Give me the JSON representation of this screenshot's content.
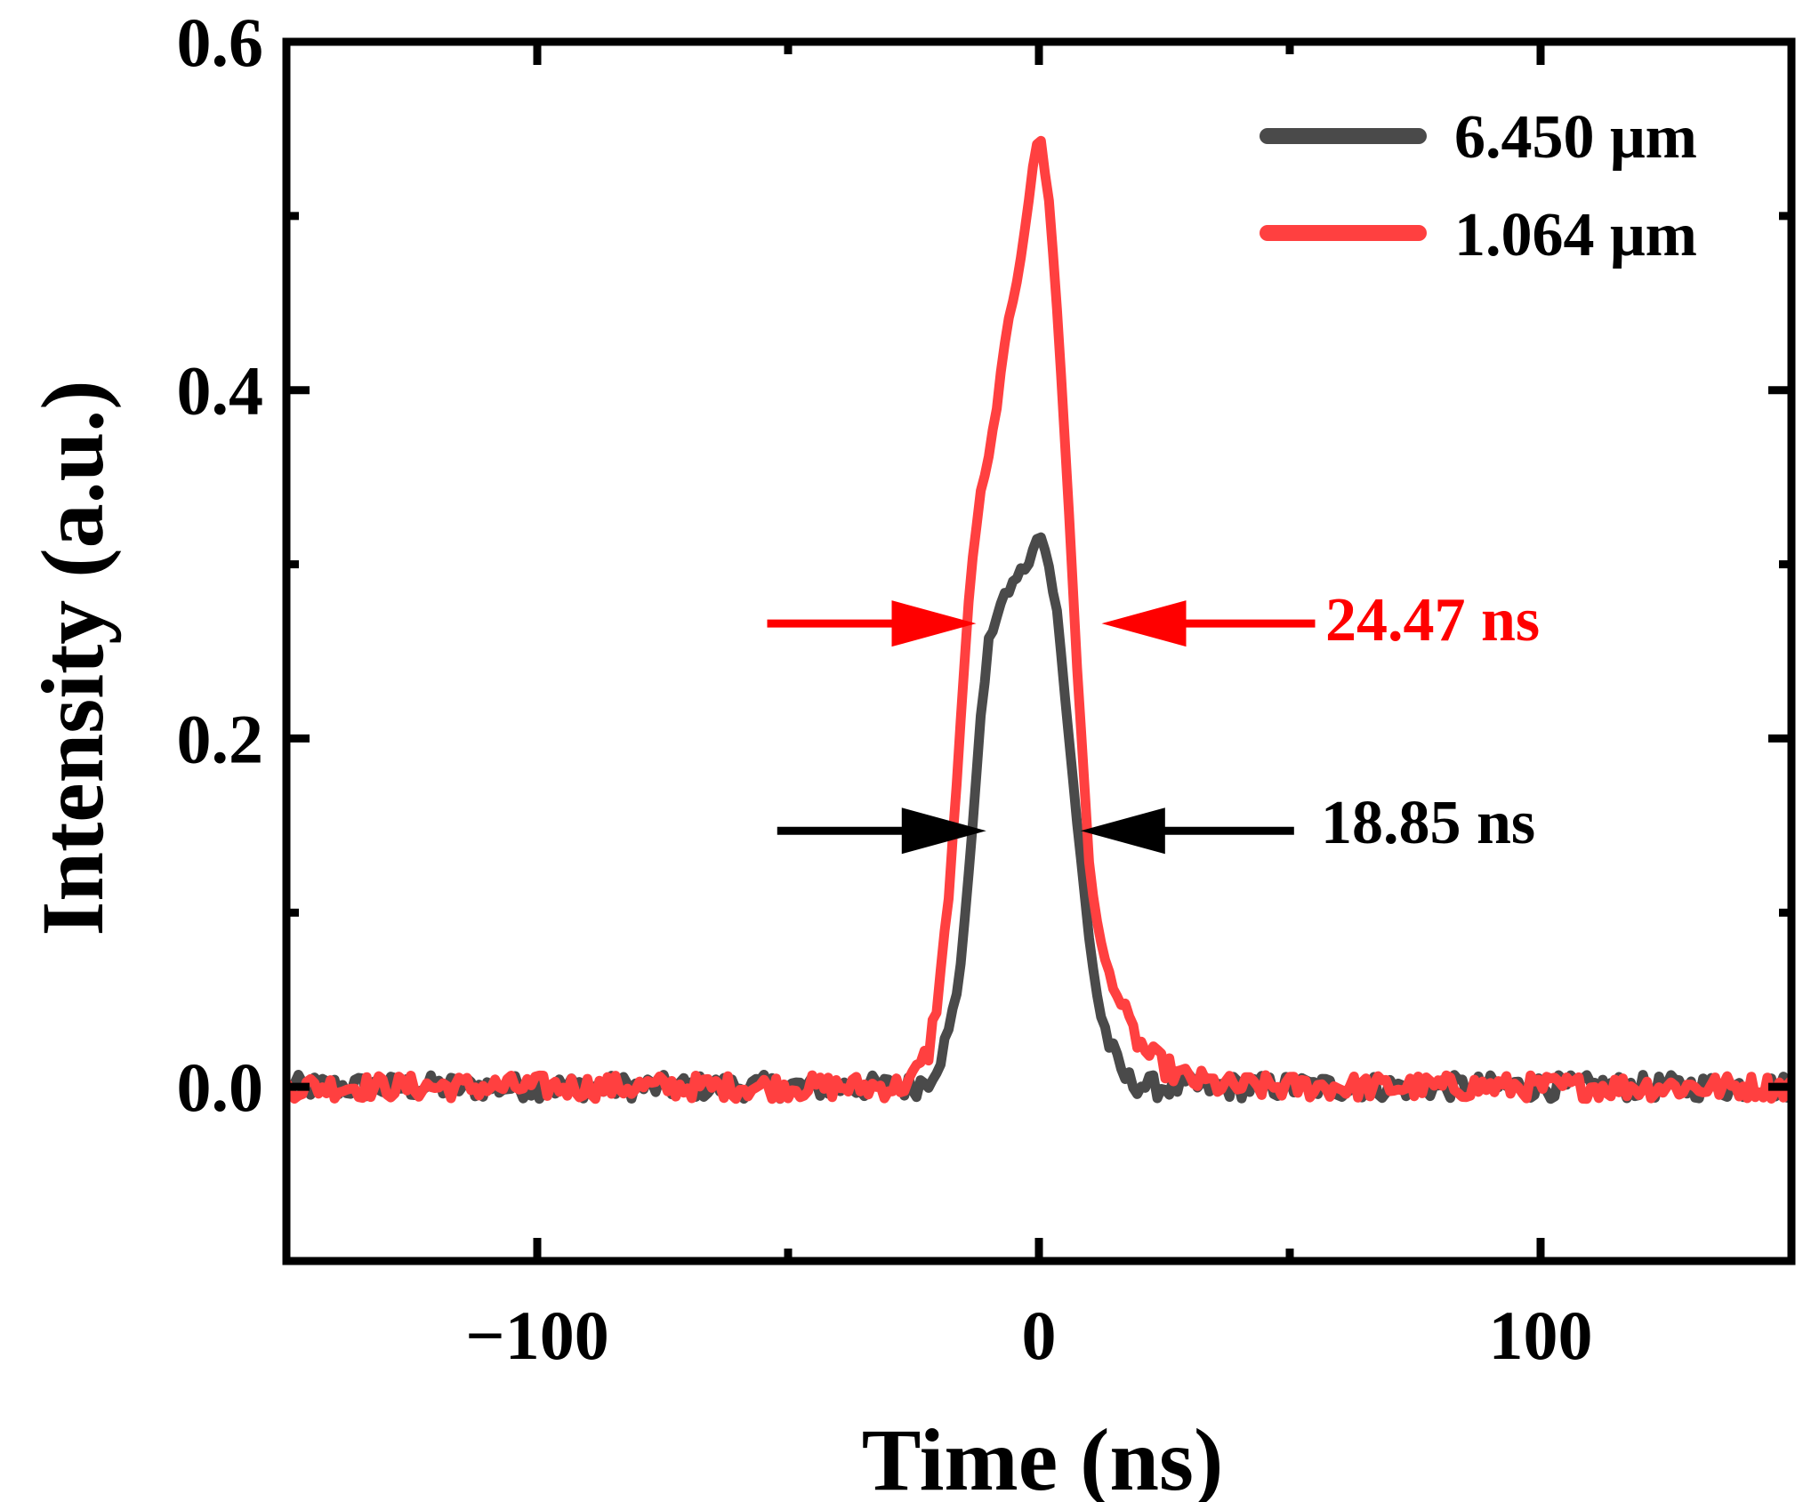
{
  "chart_data": {
    "type": "line",
    "title": "",
    "xlabel": "Time (ns)",
    "ylabel": "Intensity (a.u.)",
    "xlim": [
      -150,
      150
    ],
    "ylim": [
      -0.1,
      0.6
    ],
    "xticks": [
      -100,
      0,
      100
    ],
    "xtick_labels": [
      "−100",
      "0",
      "100"
    ],
    "xminor": [
      -150,
      -50,
      50,
      150
    ],
    "yticks": [
      0.0,
      0.2,
      0.4,
      0.6
    ],
    "ytick_labels": [
      "0.0",
      "0.2",
      "0.4",
      "0.6"
    ],
    "yminor": [
      -0.1,
      0.1,
      0.3,
      0.5
    ],
    "grid": false,
    "legend_position": "top-right",
    "series": [
      {
        "name": "6.450 μm",
        "color": "#4a4a4a",
        "x": [
          -150,
          -25,
          -22,
          -20,
          -18,
          -16,
          -14,
          -12,
          -10,
          -8,
          -6,
          -4,
          -2,
          0,
          2,
          4,
          6,
          8,
          10,
          12,
          14,
          16,
          18,
          20,
          22,
          25,
          30,
          150
        ],
        "y": [
          0.0,
          0.0,
          0.005,
          0.015,
          0.03,
          0.06,
          0.12,
          0.2,
          0.255,
          0.275,
          0.285,
          0.295,
          0.3,
          0.318,
          0.3,
          0.265,
          0.2,
          0.14,
          0.085,
          0.045,
          0.025,
          0.01,
          0.003,
          0.002,
          0.0,
          0.0,
          0.0,
          0.0
        ],
        "noise": 0.007
      },
      {
        "name": "1.064 μm",
        "color": "#ff4040",
        "x": [
          -150,
          -28,
          -25,
          -22,
          -20,
          -18,
          -16,
          -14,
          -12,
          -10,
          -8,
          -6,
          -4,
          -2,
          0,
          2,
          4,
          6,
          8,
          10,
          12,
          14,
          16,
          18,
          20,
          22,
          25,
          28,
          32,
          38,
          150
        ],
        "y": [
          0.0,
          0.0,
          0.005,
          0.02,
          0.055,
          0.11,
          0.19,
          0.28,
          0.335,
          0.36,
          0.4,
          0.44,
          0.47,
          0.51,
          0.55,
          0.51,
          0.43,
          0.33,
          0.22,
          0.13,
          0.085,
          0.065,
          0.05,
          0.035,
          0.025,
          0.018,
          0.012,
          0.006,
          0.003,
          0.0,
          0.0
        ],
        "noise": 0.007
      }
    ],
    "annotations": [
      {
        "text": "24.47 ns",
        "color": "#ff0000",
        "y": 0.266,
        "left_x": -12.5,
        "right_x": 12.5
      },
      {
        "text": "18.85 ns",
        "color": "#000000",
        "y": 0.147,
        "left_x": -10.5,
        "right_x": 8.3
      }
    ]
  }
}
